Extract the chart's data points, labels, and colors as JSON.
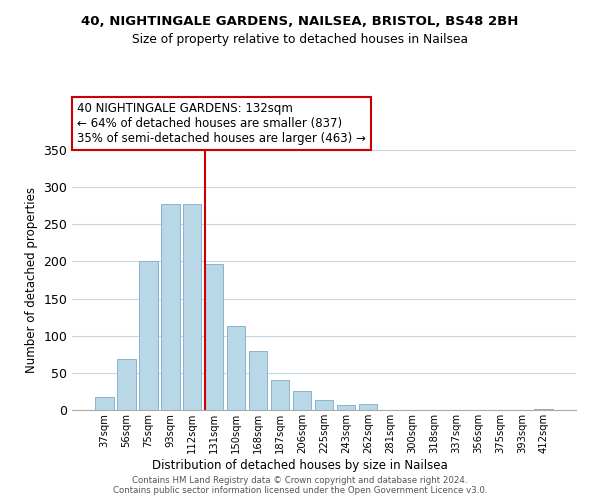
{
  "title1": "40, NIGHTINGALE GARDENS, NAILSEA, BRISTOL, BS48 2BH",
  "title2": "Size of property relative to detached houses in Nailsea",
  "xlabel": "Distribution of detached houses by size in Nailsea",
  "ylabel": "Number of detached properties",
  "bar_labels": [
    "37sqm",
    "56sqm",
    "75sqm",
    "93sqm",
    "112sqm",
    "131sqm",
    "150sqm",
    "168sqm",
    "187sqm",
    "206sqm",
    "225sqm",
    "243sqm",
    "262sqm",
    "281sqm",
    "300sqm",
    "318sqm",
    "337sqm",
    "356sqm",
    "375sqm",
    "393sqm",
    "412sqm"
  ],
  "bar_values": [
    18,
    68,
    200,
    277,
    277,
    196,
    113,
    79,
    40,
    25,
    14,
    7,
    8,
    0,
    0,
    0,
    0,
    0,
    0,
    0,
    2
  ],
  "bar_color": "#b8d8e8",
  "bar_edge_color": "#8ab4cc",
  "vline_color": "#cc0000",
  "vline_index": 5,
  "ylim": [
    0,
    350
  ],
  "yticks": [
    0,
    50,
    100,
    150,
    200,
    250,
    300,
    350
  ],
  "annotation_text": "40 NIGHTINGALE GARDENS: 132sqm\n← 64% of detached houses are smaller (837)\n35% of semi-detached houses are larger (463) →",
  "footer1": "Contains HM Land Registry data © Crown copyright and database right 2024.",
  "footer2": "Contains public sector information licensed under the Open Government Licence v3.0.",
  "background_color": "#ffffff",
  "grid_color": "#c8d4e0"
}
